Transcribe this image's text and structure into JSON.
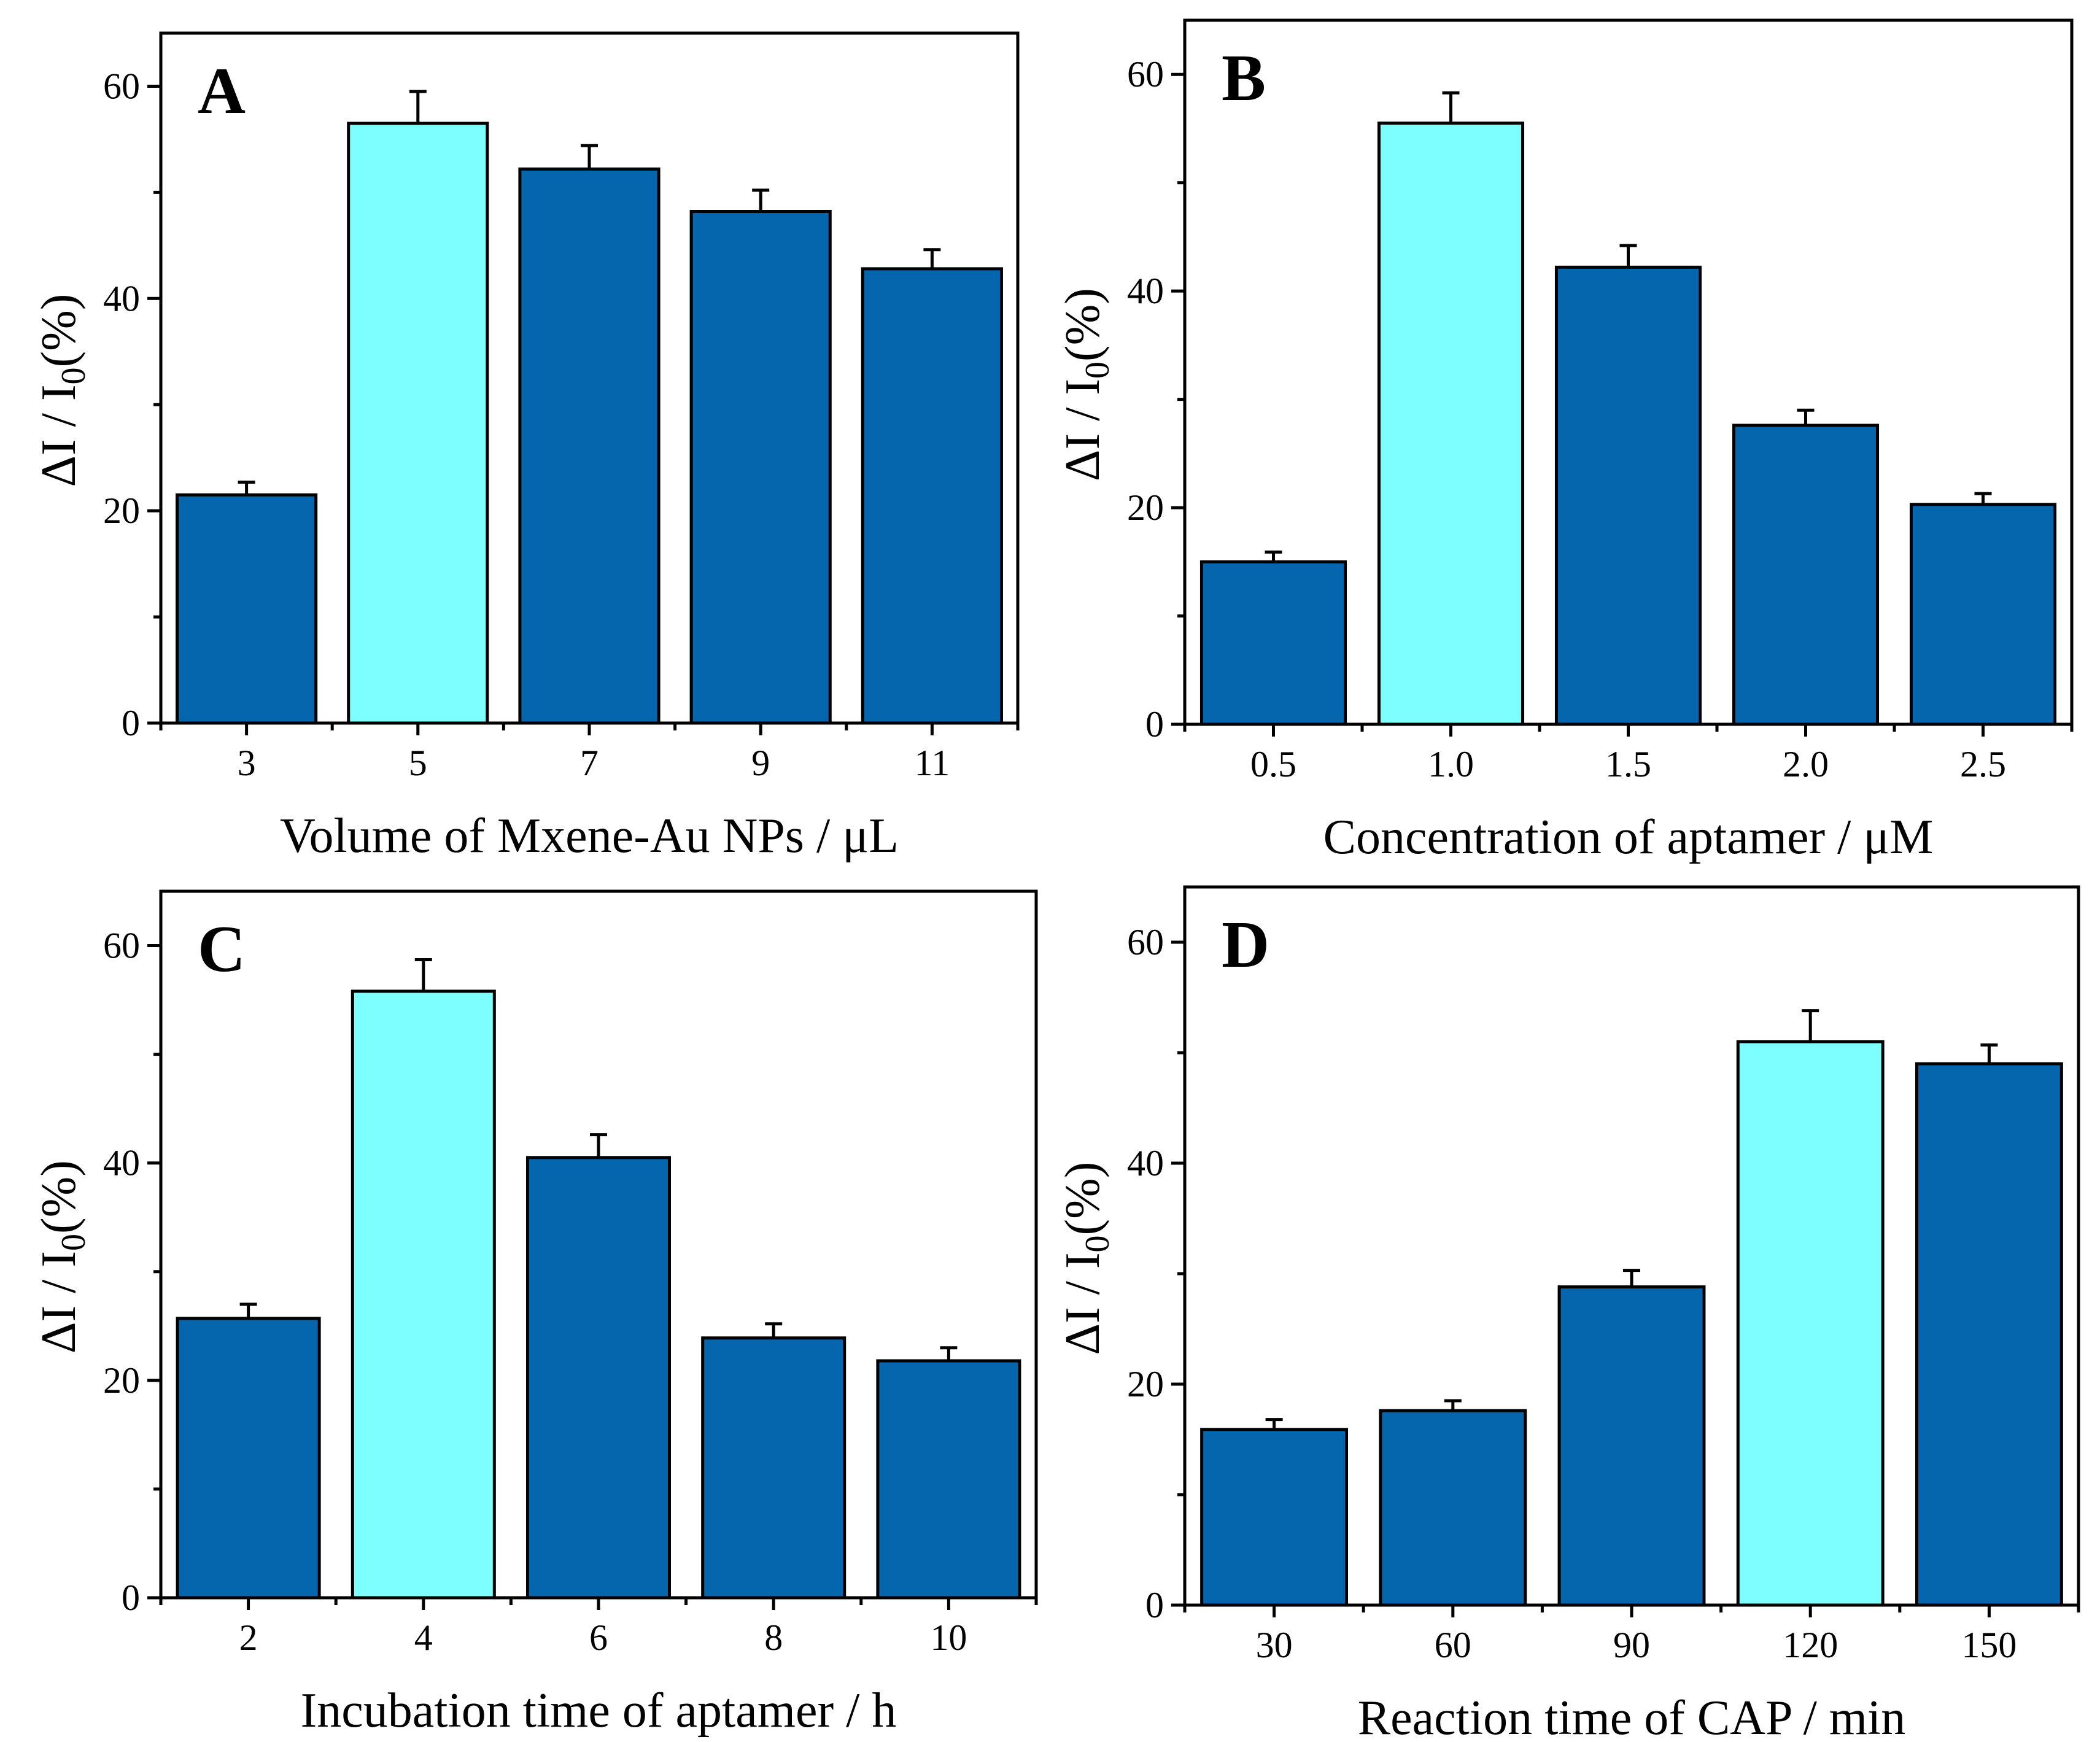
{
  "colors": {
    "bar_default": "#0565ad",
    "bar_highlight": "#7dffff",
    "outline": "#000000"
  },
  "chart_data": [
    {
      "panel": "A",
      "type": "bar",
      "categories": [
        "3",
        "5",
        "7",
        "9",
        "11"
      ],
      "values": [
        21.5,
        56.5,
        52.2,
        48.2,
        42.8
      ],
      "errors": [
        1.2,
        3.0,
        2.2,
        2.0,
        1.8
      ],
      "highlight_index": 1,
      "xlabel": "Volume of Mxene-Au NPs / μL",
      "ylabel_prefix": "ΔI  /  I",
      "ylabel_sub": "0",
      "ylabel_suffix": "(%)",
      "ylim": [
        0,
        65
      ],
      "yticks": [
        "0",
        "20",
        "40",
        "60"
      ],
      "ytick_values": [
        0,
        20,
        40,
        60
      ]
    },
    {
      "panel": "B",
      "type": "bar",
      "categories": [
        "0.5",
        "1.0",
        "1.5",
        "2.0",
        "2.5"
      ],
      "values": [
        15.0,
        55.5,
        42.2,
        27.6,
        20.3
      ],
      "errors": [
        0.9,
        2.8,
        2.0,
        1.4,
        1.0
      ],
      "highlight_index": 1,
      "xlabel": "Concentration of aptamer / μM",
      "ylabel_prefix": "ΔI  /  I",
      "ylabel_sub": "0",
      "ylabel_suffix": "(%)",
      "ylim": [
        0,
        65
      ],
      "yticks": [
        "0",
        "20",
        "40",
        "60"
      ],
      "ytick_values": [
        0,
        20,
        40,
        60
      ]
    },
    {
      "panel": "C",
      "type": "bar",
      "categories": [
        "2",
        "4",
        "6",
        "8",
        "10"
      ],
      "values": [
        25.7,
        55.8,
        40.5,
        23.9,
        21.8
      ],
      "errors": [
        1.3,
        2.9,
        2.1,
        1.3,
        1.2
      ],
      "highlight_index": 1,
      "xlabel": "Incubation time of aptamer / h",
      "ylabel_prefix": "ΔI  /  I",
      "ylabel_sub": "0",
      "ylabel_suffix": "(%)",
      "ylim": [
        0,
        65
      ],
      "yticks": [
        "0",
        "20",
        "40",
        "60"
      ],
      "ytick_values": [
        0,
        20,
        40,
        60
      ]
    },
    {
      "panel": "D",
      "type": "bar",
      "categories": [
        "30",
        "60",
        "90",
        "120",
        "150"
      ],
      "values": [
        15.9,
        17.6,
        28.8,
        51.0,
        49.0
      ],
      "errors": [
        0.9,
        0.9,
        1.5,
        2.8,
        1.7
      ],
      "highlight_index": 3,
      "xlabel": "Reaction time of CAP / min",
      "ylabel_prefix": "ΔI  /  I",
      "ylabel_sub": "0",
      "ylabel_suffix": "(%)",
      "ylim": [
        0,
        65
      ],
      "yticks": [
        "0",
        "20",
        "40",
        "60"
      ],
      "ytick_values": [
        0,
        20,
        40,
        60
      ]
    }
  ]
}
